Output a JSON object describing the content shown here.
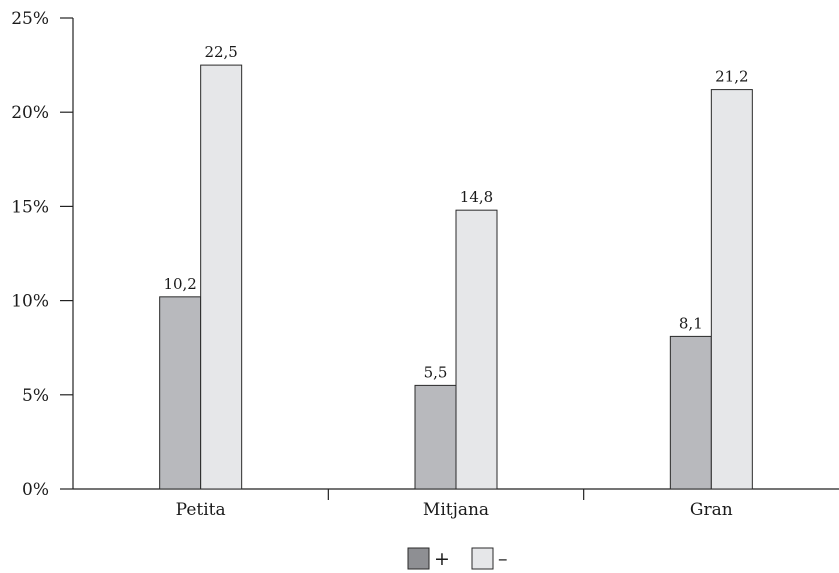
{
  "chart_data": {
    "type": "bar",
    "categories": [
      "Petita",
      "Mitjana",
      "Gran"
    ],
    "series": [
      {
        "name": "+",
        "values": [
          10.2,
          5.5,
          8.1
        ],
        "labels": [
          "10,2",
          "5,5",
          "8,1"
        ],
        "color": "#b8b9bd"
      },
      {
        "name": "–",
        "values": [
          22.5,
          14.8,
          21.2
        ],
        "labels": [
          "22,5",
          "14,8",
          "21,2"
        ],
        "color": "#e6e7e9"
      }
    ],
    "ylim": [
      0,
      25
    ],
    "yticks": [
      0,
      5,
      10,
      15,
      20,
      25
    ],
    "ytick_labels": [
      "0%",
      "5%",
      "10%",
      "15%",
      "20%",
      "25%"
    ],
    "title": "",
    "xlabel": "",
    "ylabel": "",
    "legend_position": "bottom-center",
    "grid": false
  }
}
